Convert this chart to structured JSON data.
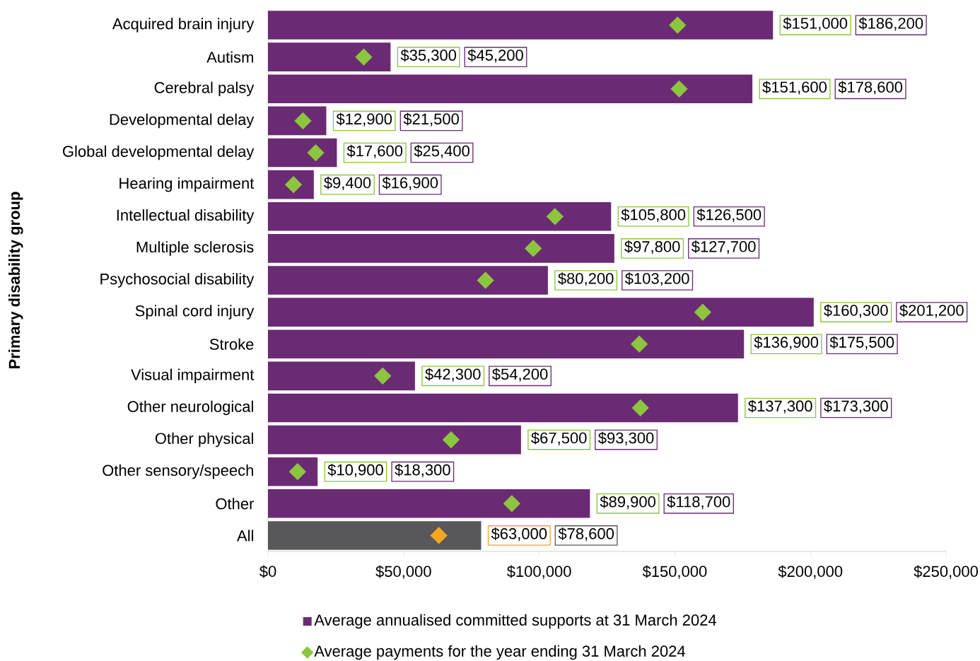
{
  "chart_data": {
    "type": "bar",
    "orientation": "horizontal",
    "ylabel": "Primary disability group",
    "categories": [
      "Acquired brain injury",
      "Autism",
      "Cerebral palsy",
      "Developmental delay",
      "Global developmental delay",
      "Hearing impairment",
      "Intellectual disability",
      "Multiple sclerosis",
      "Psychosocial disability",
      "Spinal cord injury",
      "Stroke",
      "Visual impairment",
      "Other neurological",
      "Other physical",
      "Other sensory/speech",
      "Other",
      "All"
    ],
    "series": [
      {
        "name": "Average annualised committed supports at 31 March 2024",
        "color": "#6b2a74",
        "colors": [
          "#6b2a74",
          "#6b2a74",
          "#6b2a74",
          "#6b2a74",
          "#6b2a74",
          "#6b2a74",
          "#6b2a74",
          "#6b2a74",
          "#6b2a74",
          "#6b2a74",
          "#6b2a74",
          "#6b2a74",
          "#6b2a74",
          "#6b2a74",
          "#6b2a74",
          "#6b2a74",
          "#58585a"
        ],
        "values": [
          186200,
          45200,
          178600,
          21500,
          25400,
          16900,
          126500,
          127700,
          103200,
          201200,
          175500,
          54200,
          173300,
          93300,
          18300,
          118700,
          78600
        ]
      },
      {
        "name": "Average payments for the year ending 31 March 2024",
        "type": "scatter",
        "marker": "diamond",
        "color": "#8cc63e",
        "colors": [
          "#8cc63e",
          "#8cc63e",
          "#8cc63e",
          "#8cc63e",
          "#8cc63e",
          "#8cc63e",
          "#8cc63e",
          "#8cc63e",
          "#8cc63e",
          "#8cc63e",
          "#8cc63e",
          "#8cc63e",
          "#8cc63e",
          "#8cc63e",
          "#8cc63e",
          "#8cc63e",
          "#f7a621"
        ],
        "values": [
          151000,
          35300,
          151600,
          12900,
          17600,
          9400,
          105800,
          97800,
          80200,
          160300,
          136900,
          42300,
          137300,
          67500,
          10900,
          89900,
          63000
        ]
      }
    ],
    "annotations": [
      "$151,000",
      "$186,200",
      "$35,300",
      "$45,200",
      "$151,600",
      "$178,600",
      "$12,900",
      "$21,500",
      "$17,600",
      "$25,400",
      "$9,400",
      "$16,900",
      "$105,800",
      "$126,500",
      "$97,800",
      "$127,700",
      "$80,200",
      "$103,200",
      "$160,300",
      "$201,200",
      "$136,900",
      "$175,500",
      "$42,300",
      "$54,200",
      "$137,300",
      "$173,300",
      "$67,500",
      "$93,300",
      "$10,900",
      "$18,300",
      "$89,900",
      "$118,700",
      "$63,000",
      "$78,600"
    ],
    "xlim": [
      0,
      250000
    ],
    "xticks": [
      {
        "value": 0,
        "label": "$0"
      },
      {
        "value": 50000,
        "label": "$50,000"
      },
      {
        "value": 100000,
        "label": "$100,000"
      },
      {
        "value": 150000,
        "label": "$150,000"
      },
      {
        "value": 200000,
        "label": "$200,000"
      },
      {
        "value": 250000,
        "label": "$250,000"
      }
    ],
    "legend": "bottom"
  }
}
